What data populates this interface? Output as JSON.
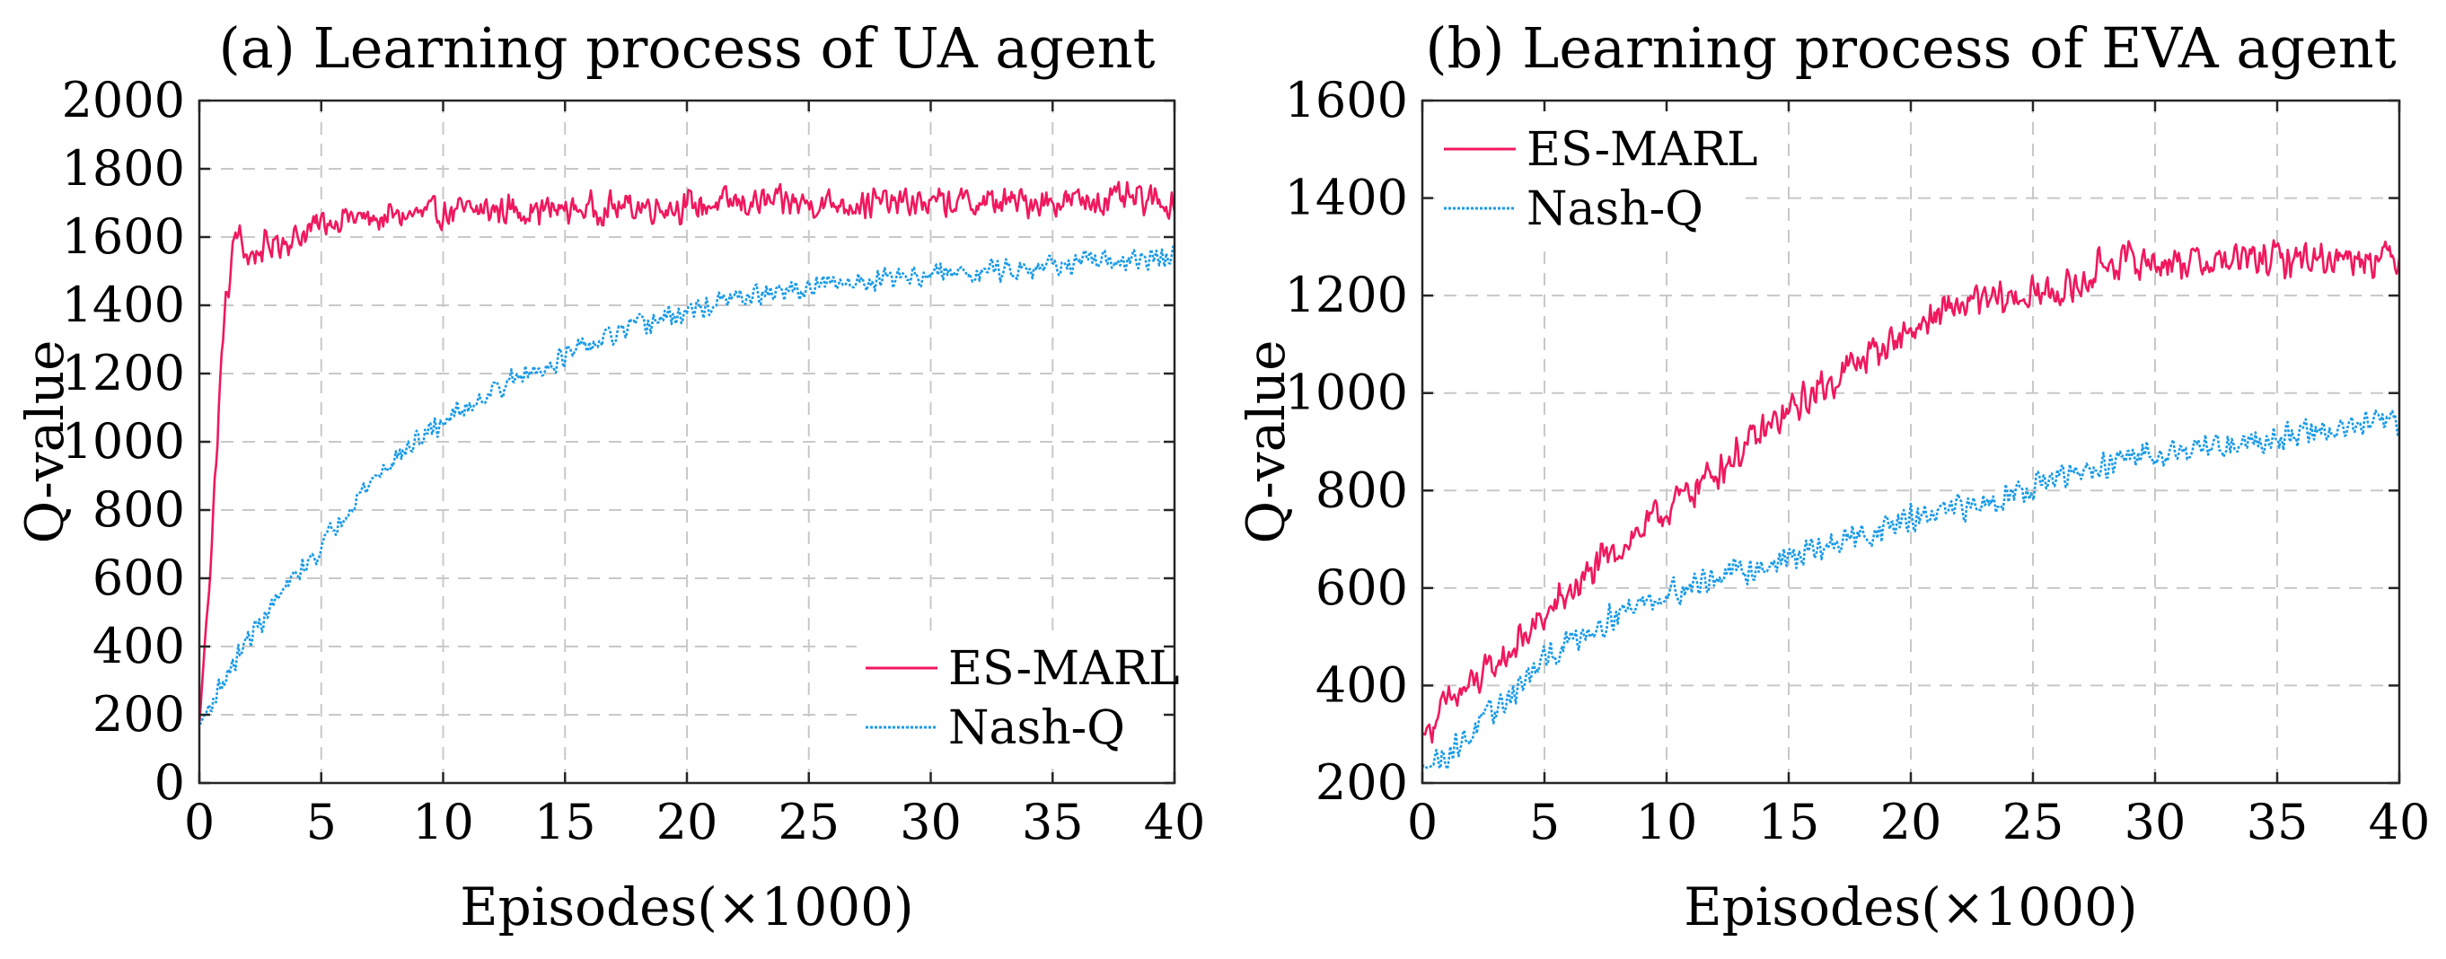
{
  "chart_data": [
    {
      "type": "line",
      "title": "(a) Learning process of UA agent",
      "xlabel": "Episodes(×1000)",
      "ylabel": "Q-value",
      "xlim": [
        0,
        40
      ],
      "ylim": [
        0,
        2000
      ],
      "xticks": [
        0,
        5,
        10,
        15,
        20,
        25,
        30,
        35,
        40
      ],
      "yticks": [
        0,
        200,
        400,
        600,
        800,
        1000,
        1200,
        1400,
        1600,
        1800,
        2000
      ],
      "grid": true,
      "legend_position": "bottom-right",
      "series": [
        {
          "name": "ES-MARL",
          "color": "#f0185e",
          "style": "solid",
          "x": [
            0,
            0.5,
            1,
            1.5,
            2,
            3,
            4,
            5,
            6,
            7,
            8,
            10,
            12,
            15,
            18,
            20,
            22,
            25,
            28,
            30,
            32,
            35,
            38,
            40
          ],
          "y": [
            170,
            700,
            1350,
            1620,
            1540,
            1580,
            1600,
            1640,
            1660,
            1650,
            1660,
            1670,
            1680,
            1680,
            1690,
            1690,
            1700,
            1700,
            1700,
            1700,
            1700,
            1705,
            1710,
            1700
          ],
          "noise": 55
        },
        {
          "name": "Nash-Q",
          "color": "#1a9be8",
          "style": "dotted",
          "x": [
            0,
            1,
            2,
            3,
            4,
            5,
            6,
            7,
            8,
            10,
            12,
            15,
            18,
            20,
            22,
            25,
            28,
            30,
            32,
            35,
            38,
            40
          ],
          "y": [
            170,
            300,
            420,
            520,
            610,
            690,
            800,
            880,
            950,
            1060,
            1150,
            1250,
            1340,
            1380,
            1420,
            1450,
            1480,
            1490,
            1500,
            1520,
            1530,
            1540
          ],
          "noise": 38
        }
      ]
    },
    {
      "type": "line",
      "title": "(b) Learning process of EVA agent",
      "xlabel": "Episodes(×1000)",
      "ylabel": "Q-value",
      "xlim": [
        0,
        40
      ],
      "ylim": [
        200,
        1600
      ],
      "xticks": [
        0,
        5,
        10,
        15,
        20,
        25,
        30,
        35,
        40
      ],
      "yticks": [
        200,
        400,
        600,
        800,
        1000,
        1200,
        1400,
        1600
      ],
      "grid": true,
      "legend_position": "top-left",
      "series": [
        {
          "name": "ES-MARL",
          "color": "#f0185e",
          "style": "solid",
          "x": [
            0,
            1,
            2,
            3,
            4,
            5,
            6,
            8,
            10,
            12,
            15,
            18,
            20,
            22,
            25,
            27,
            28,
            30,
            32,
            35,
            38,
            40
          ],
          "y": [
            300,
            360,
            400,
            440,
            490,
            540,
            590,
            680,
            760,
            840,
            960,
            1070,
            1130,
            1180,
            1200,
            1220,
            1270,
            1270,
            1270,
            1275,
            1280,
            1280
          ],
          "noise": 45
        },
        {
          "name": "Nash-Q",
          "color": "#1a9be8",
          "style": "dotted",
          "x": [
            0,
            1,
            2,
            3,
            4,
            5,
            6,
            8,
            10,
            12,
            15,
            18,
            20,
            22,
            25,
            28,
            30,
            32,
            35,
            38,
            40
          ],
          "y": [
            230,
            260,
            300,
            350,
            400,
            450,
            490,
            550,
            590,
            620,
            660,
            710,
            740,
            760,
            810,
            850,
            880,
            890,
            910,
            930,
            940
          ],
          "noise": 35
        }
      ]
    }
  ]
}
